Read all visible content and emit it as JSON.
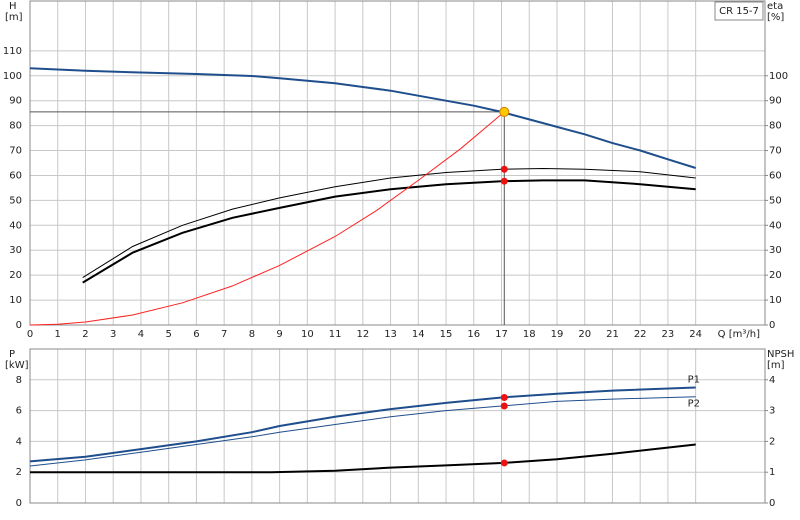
{
  "chart_data": [
    {
      "type": "line",
      "legend_title": "CR 15-7",
      "ylabel": "H",
      "yunit": "[m]",
      "y2label": "eta",
      "y2unit": "[%]",
      "xlabel": "Q [m³/h]",
      "xlim": [
        0,
        26.5
      ],
      "xticks": [
        0,
        1,
        2,
        3,
        4,
        5,
        6,
        7,
        8,
        9,
        10,
        11,
        12,
        13,
        14,
        15,
        16,
        17,
        18,
        19,
        20,
        21,
        22,
        23,
        24
      ],
      "ylim": [
        0,
        130
      ],
      "yticks": [
        0,
        10,
        20,
        30,
        40,
        50,
        60,
        70,
        80,
        90,
        100,
        110
      ],
      "y2lim": [
        0,
        130
      ],
      "y2ticks": [
        0,
        10,
        20,
        30,
        40,
        50,
        60,
        70,
        80,
        90,
        100
      ],
      "grid": true,
      "series": [
        {
          "color": "#1f4e8c",
          "width": 2,
          "x": [
            0,
            2,
            4,
            6,
            8,
            9,
            10,
            11,
            12,
            13,
            14,
            15,
            16,
            17,
            18,
            19,
            20,
            21,
            22,
            23,
            24
          ],
          "values": [
            103,
            102,
            101.3,
            100.7,
            99.9,
            99,
            98,
            97,
            95.5,
            94,
            92,
            90,
            88,
            85.5,
            82.5,
            79.5,
            76.5,
            73,
            70,
            66.5,
            63
          ]
        },
        {
          "color": "#000000",
          "width": 1,
          "axis": "y2",
          "x": [
            1.9,
            3.7,
            5.5,
            7.3,
            9,
            11,
            13,
            15,
            17,
            18.5,
            20,
            22,
            24
          ],
          "values": [
            19,
            31.5,
            40,
            46.5,
            51,
            55.5,
            59,
            61.2,
            62.5,
            62.8,
            62.5,
            61.5,
            59
          ]
        },
        {
          "color": "#000000",
          "width": 2,
          "axis": "y2",
          "x": [
            1.9,
            3.7,
            5.5,
            7.3,
            9,
            11,
            13,
            15,
            17,
            18.5,
            20,
            22,
            24
          ],
          "values": [
            17,
            29,
            37,
            43,
            47,
            51.5,
            54.5,
            56.5,
            57.7,
            58,
            58,
            56.5,
            54.5
          ]
        },
        {
          "color": "#ff2020",
          "width": 1,
          "x": [
            0,
            1,
            2,
            3.7,
            5.5,
            7.3,
            9,
            11,
            12.5,
            14,
            15.5,
            17.1
          ],
          "values": [
            0,
            0.3,
            1.2,
            4,
            8.9,
            15.7,
            23.9,
            35.5,
            46,
            58,
            70.5,
            85.5
          ]
        }
      ],
      "duty_points": [
        {
          "x": 17.1,
          "y": 85.5,
          "color": "#ffc800",
          "crosshair": true
        },
        {
          "x": 17.1,
          "y": 62.5,
          "color": "#ee1111"
        },
        {
          "x": 17.1,
          "y": 57.7,
          "color": "#ee1111"
        }
      ]
    },
    {
      "type": "line",
      "ylabel": "P",
      "yunit": "[kW]",
      "y2label": "NPSH",
      "y2unit": "[m]",
      "xlim": [
        0,
        26.5
      ],
      "xticks": [
        0,
        1,
        2,
        3,
        4,
        5,
        6,
        7,
        8,
        9,
        10,
        11,
        12,
        13,
        14,
        15,
        16,
        17,
        18,
        19,
        20,
        21,
        22,
        23,
        24
      ],
      "ylim": [
        0,
        10
      ],
      "yticks": [
        0,
        2,
        4,
        6,
        8
      ],
      "y2lim": [
        0,
        5
      ],
      "y2ticks": [
        0,
        1,
        2,
        3,
        4
      ],
      "grid": true,
      "series": [
        {
          "name": "P1",
          "color": "#1f4e8c",
          "width": 2,
          "x": [
            0,
            2,
            4,
            6,
            8,
            9,
            11,
            13,
            15,
            17,
            19,
            21,
            24
          ],
          "values": [
            2.7,
            3.0,
            3.5,
            4.0,
            4.6,
            5.0,
            5.6,
            6.1,
            6.5,
            6.85,
            7.1,
            7.3,
            7.5
          ]
        },
        {
          "name": "P2",
          "color": "#1f4e8c",
          "width": 1,
          "x": [
            0,
            2,
            4,
            6,
            8,
            9,
            11,
            13,
            15,
            17,
            19,
            21,
            24
          ],
          "values": [
            2.4,
            2.8,
            3.3,
            3.8,
            4.3,
            4.6,
            5.1,
            5.6,
            6.0,
            6.3,
            6.6,
            6.75,
            6.9
          ]
        },
        {
          "color": "#000000",
          "width": 2,
          "axis": "y2",
          "x": [
            0,
            8.7,
            11,
            13,
            15,
            17,
            19,
            21,
            24
          ],
          "values": [
            1.0,
            1.0,
            1.05,
            1.15,
            1.22,
            1.3,
            1.42,
            1.6,
            1.9
          ]
        }
      ],
      "duty_points": [
        {
          "x": 17.1,
          "y": 6.85,
          "color": "#ee1111"
        },
        {
          "x": 17.1,
          "y": 6.3,
          "color": "#ee1111"
        },
        {
          "x": 17.1,
          "y": 1.3,
          "color": "#ee1111",
          "axis": "y2"
        }
      ]
    }
  ]
}
